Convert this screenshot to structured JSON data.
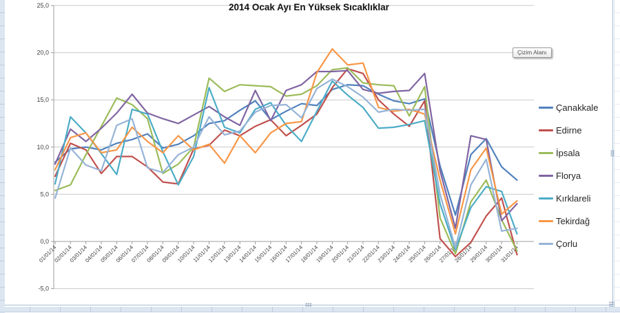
{
  "overlay": {
    "tooltip": "Çizim Alanı"
  },
  "chart_data": {
    "type": "line",
    "title": "2014 Ocak Ayı En Yüksek Sıcaklıklar",
    "xlabel": "",
    "ylabel": "",
    "ylim": [
      -5,
      25
    ],
    "grid": true,
    "legend_position": "right",
    "y_ticks": {
      "values": [
        25,
        20,
        15,
        10,
        5,
        0,
        -5
      ],
      "labels": [
        "25,0",
        "20,0",
        "15,0",
        "10,0",
        "5,0",
        "0,0",
        "-5,0"
      ]
    },
    "categories": [
      "01/01/14",
      "02/01/14",
      "03/01/14",
      "04/01/14",
      "05/01/14",
      "06/01/14",
      "07/01/14",
      "08/01/14",
      "09/01/14",
      "10/01/14",
      "11/01/14",
      "12/01/14",
      "13/01/14",
      "14/01/14",
      "15/01/14",
      "16/01/14",
      "17/01/14",
      "18/01/14",
      "19/01/14",
      "20/01/14",
      "21/01/14",
      "22/01/14",
      "23/01/14",
      "24/01/14",
      "25/01/14",
      "26/01/14",
      "27/01/14",
      "28/01/14",
      "29/01/14",
      "30/01/14",
      "31/01/14"
    ],
    "series": [
      {
        "name": "Çanakkale",
        "color": "#4F81BD",
        "values": [
          8.4,
          9.8,
          10.0,
          9.7,
          10.4,
          10.8,
          11.4,
          9.9,
          10.3,
          11.2,
          12.5,
          12.8,
          13.9,
          14.9,
          12.9,
          13.8,
          14.6,
          14.4,
          16.1,
          16.6,
          16.5,
          15.6,
          14.9,
          14.6,
          15.1,
          8.0,
          2.8,
          9.2,
          10.9,
          7.9,
          6.5
        ]
      },
      {
        "name": "Edirne",
        "color": "#C0504D",
        "values": [
          6.9,
          10.4,
          9.7,
          7.2,
          9.0,
          9.0,
          7.9,
          6.3,
          6.1,
          9.8,
          10.2,
          11.8,
          11.2,
          12.2,
          12.9,
          11.2,
          12.3,
          13.5,
          16.3,
          18.3,
          17.8,
          15.0,
          13.5,
          12.2,
          14.9,
          0.3,
          -1.6,
          -0.1,
          2.7,
          4.6,
          -1.4
        ]
      },
      {
        "name": "İpsala",
        "color": "#9BBB59",
        "values": [
          5.4,
          6.0,
          9.2,
          12.2,
          15.2,
          14.5,
          13.0,
          7.2,
          8.2,
          10.0,
          17.3,
          15.9,
          16.6,
          16.5,
          16.4,
          15.4,
          15.6,
          16.5,
          18.2,
          18.4,
          16.8,
          16.6,
          16.5,
          13.3,
          16.4,
          2.5,
          -1.3,
          4.2,
          6.5,
          2.3,
          -1.0
        ]
      },
      {
        "name": "Florya",
        "color": "#8064A2",
        "values": [
          8.2,
          11.9,
          10.6,
          12.0,
          13.6,
          15.6,
          13.6,
          13.0,
          12.5,
          13.4,
          14.3,
          13.2,
          12.3,
          16.0,
          12.8,
          16.0,
          16.6,
          18.0,
          18.0,
          18.1,
          16.1,
          15.7,
          15.9,
          16.0,
          17.8,
          7.5,
          1.4,
          11.2,
          10.8,
          2.2,
          4.0
        ]
      },
      {
        "name": "Kırklareli",
        "color": "#4BACC6",
        "values": [
          6.1,
          13.2,
          11.5,
          9.3,
          7.1,
          14.0,
          13.5,
          9.5,
          6.0,
          9.0,
          16.3,
          12.1,
          11.5,
          14.0,
          14.7,
          12.3,
          10.6,
          13.8,
          17.0,
          15.5,
          14.2,
          12.0,
          12.1,
          12.4,
          12.8,
          4.0,
          -0.9,
          3.6,
          5.8,
          5.3,
          0.8
        ]
      },
      {
        "name": "Tekirdağ",
        "color": "#F79646",
        "values": [
          7.6,
          11.0,
          11.5,
          9.4,
          9.7,
          12.1,
          10.6,
          9.4,
          11.2,
          9.7,
          10.3,
          8.3,
          11.2,
          9.4,
          11.5,
          12.5,
          12.7,
          17.9,
          20.4,
          18.7,
          18.9,
          14.2,
          13.8,
          14.0,
          13.5,
          6.5,
          0.8,
          7.6,
          9.9,
          2.9,
          4.3
        ]
      },
      {
        "name": "Çorlu",
        "color": "#95B3D7",
        "values": [
          4.6,
          9.9,
          8.1,
          7.5,
          12.3,
          13.0,
          7.8,
          7.3,
          9.2,
          10.0,
          13.2,
          11.3,
          11.7,
          13.7,
          14.4,
          14.5,
          13.1,
          16.2,
          17.2,
          16.4,
          15.3,
          13.7,
          14.0,
          13.9,
          14.0,
          5.0,
          -0.7,
          6.0,
          8.7,
          1.1,
          1.4
        ]
      }
    ]
  }
}
